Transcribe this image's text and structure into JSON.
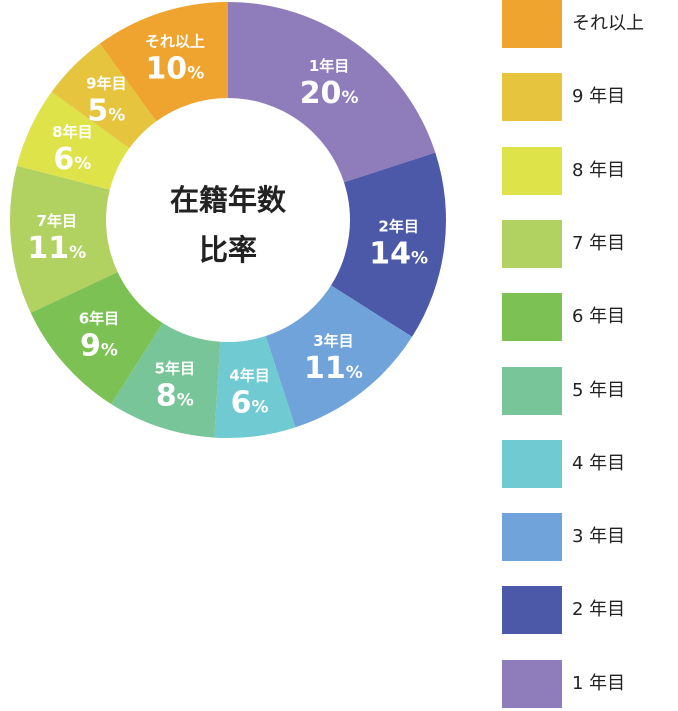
{
  "chart_data": {
    "type": "pie",
    "title": "在籍年数\n比率",
    "slices": [
      {
        "label": "1年目",
        "value": 20,
        "display": "20",
        "color": "#8e7cbb"
      },
      {
        "label": "2年目",
        "value": 14,
        "display": "14",
        "color": "#4b59a8"
      },
      {
        "label": "3年目",
        "value": 11,
        "display": "11",
        "color": "#6fa3d9"
      },
      {
        "label": "4年目",
        "value": 6,
        "display": "6",
        "color": "#6fcad1"
      },
      {
        "label": "5年目",
        "value": 8,
        "display": "8",
        "color": "#78c599"
      },
      {
        "label": "6年目",
        "value": 9,
        "display": "9",
        "color": "#7cc153"
      },
      {
        "label": "7年目",
        "value": 11,
        "display": "11",
        "color": "#b1d160"
      },
      {
        "label": "8年目",
        "value": 6,
        "display": "6",
        "color": "#dfe34a"
      },
      {
        "label": "9年目",
        "value": 5,
        "display": "5",
        "color": "#e6c43d"
      },
      {
        "label": "それ以上",
        "value": 10,
        "display": "10",
        "color": "#efa430"
      }
    ],
    "percent_sign": "%",
    "legend": {
      "placement": "right",
      "entries": [
        {
          "label": "それ以上",
          "color": "#efa430"
        },
        {
          "label": "9 年目",
          "color": "#e6c43d"
        },
        {
          "label": "8 年目",
          "color": "#dfe34a"
        },
        {
          "label": "7 年目",
          "color": "#b1d160"
        },
        {
          "label": "6 年目",
          "color": "#7cc153"
        },
        {
          "label": "5 年目",
          "color": "#78c599"
        },
        {
          "label": "4 年目",
          "color": "#6fcad1"
        },
        {
          "label": "3 年目",
          "color": "#6fa3d9"
        },
        {
          "label": "2 年目",
          "color": "#4b59a8"
        },
        {
          "label": "1 年目",
          "color": "#8e7cbb"
        }
      ]
    }
  }
}
